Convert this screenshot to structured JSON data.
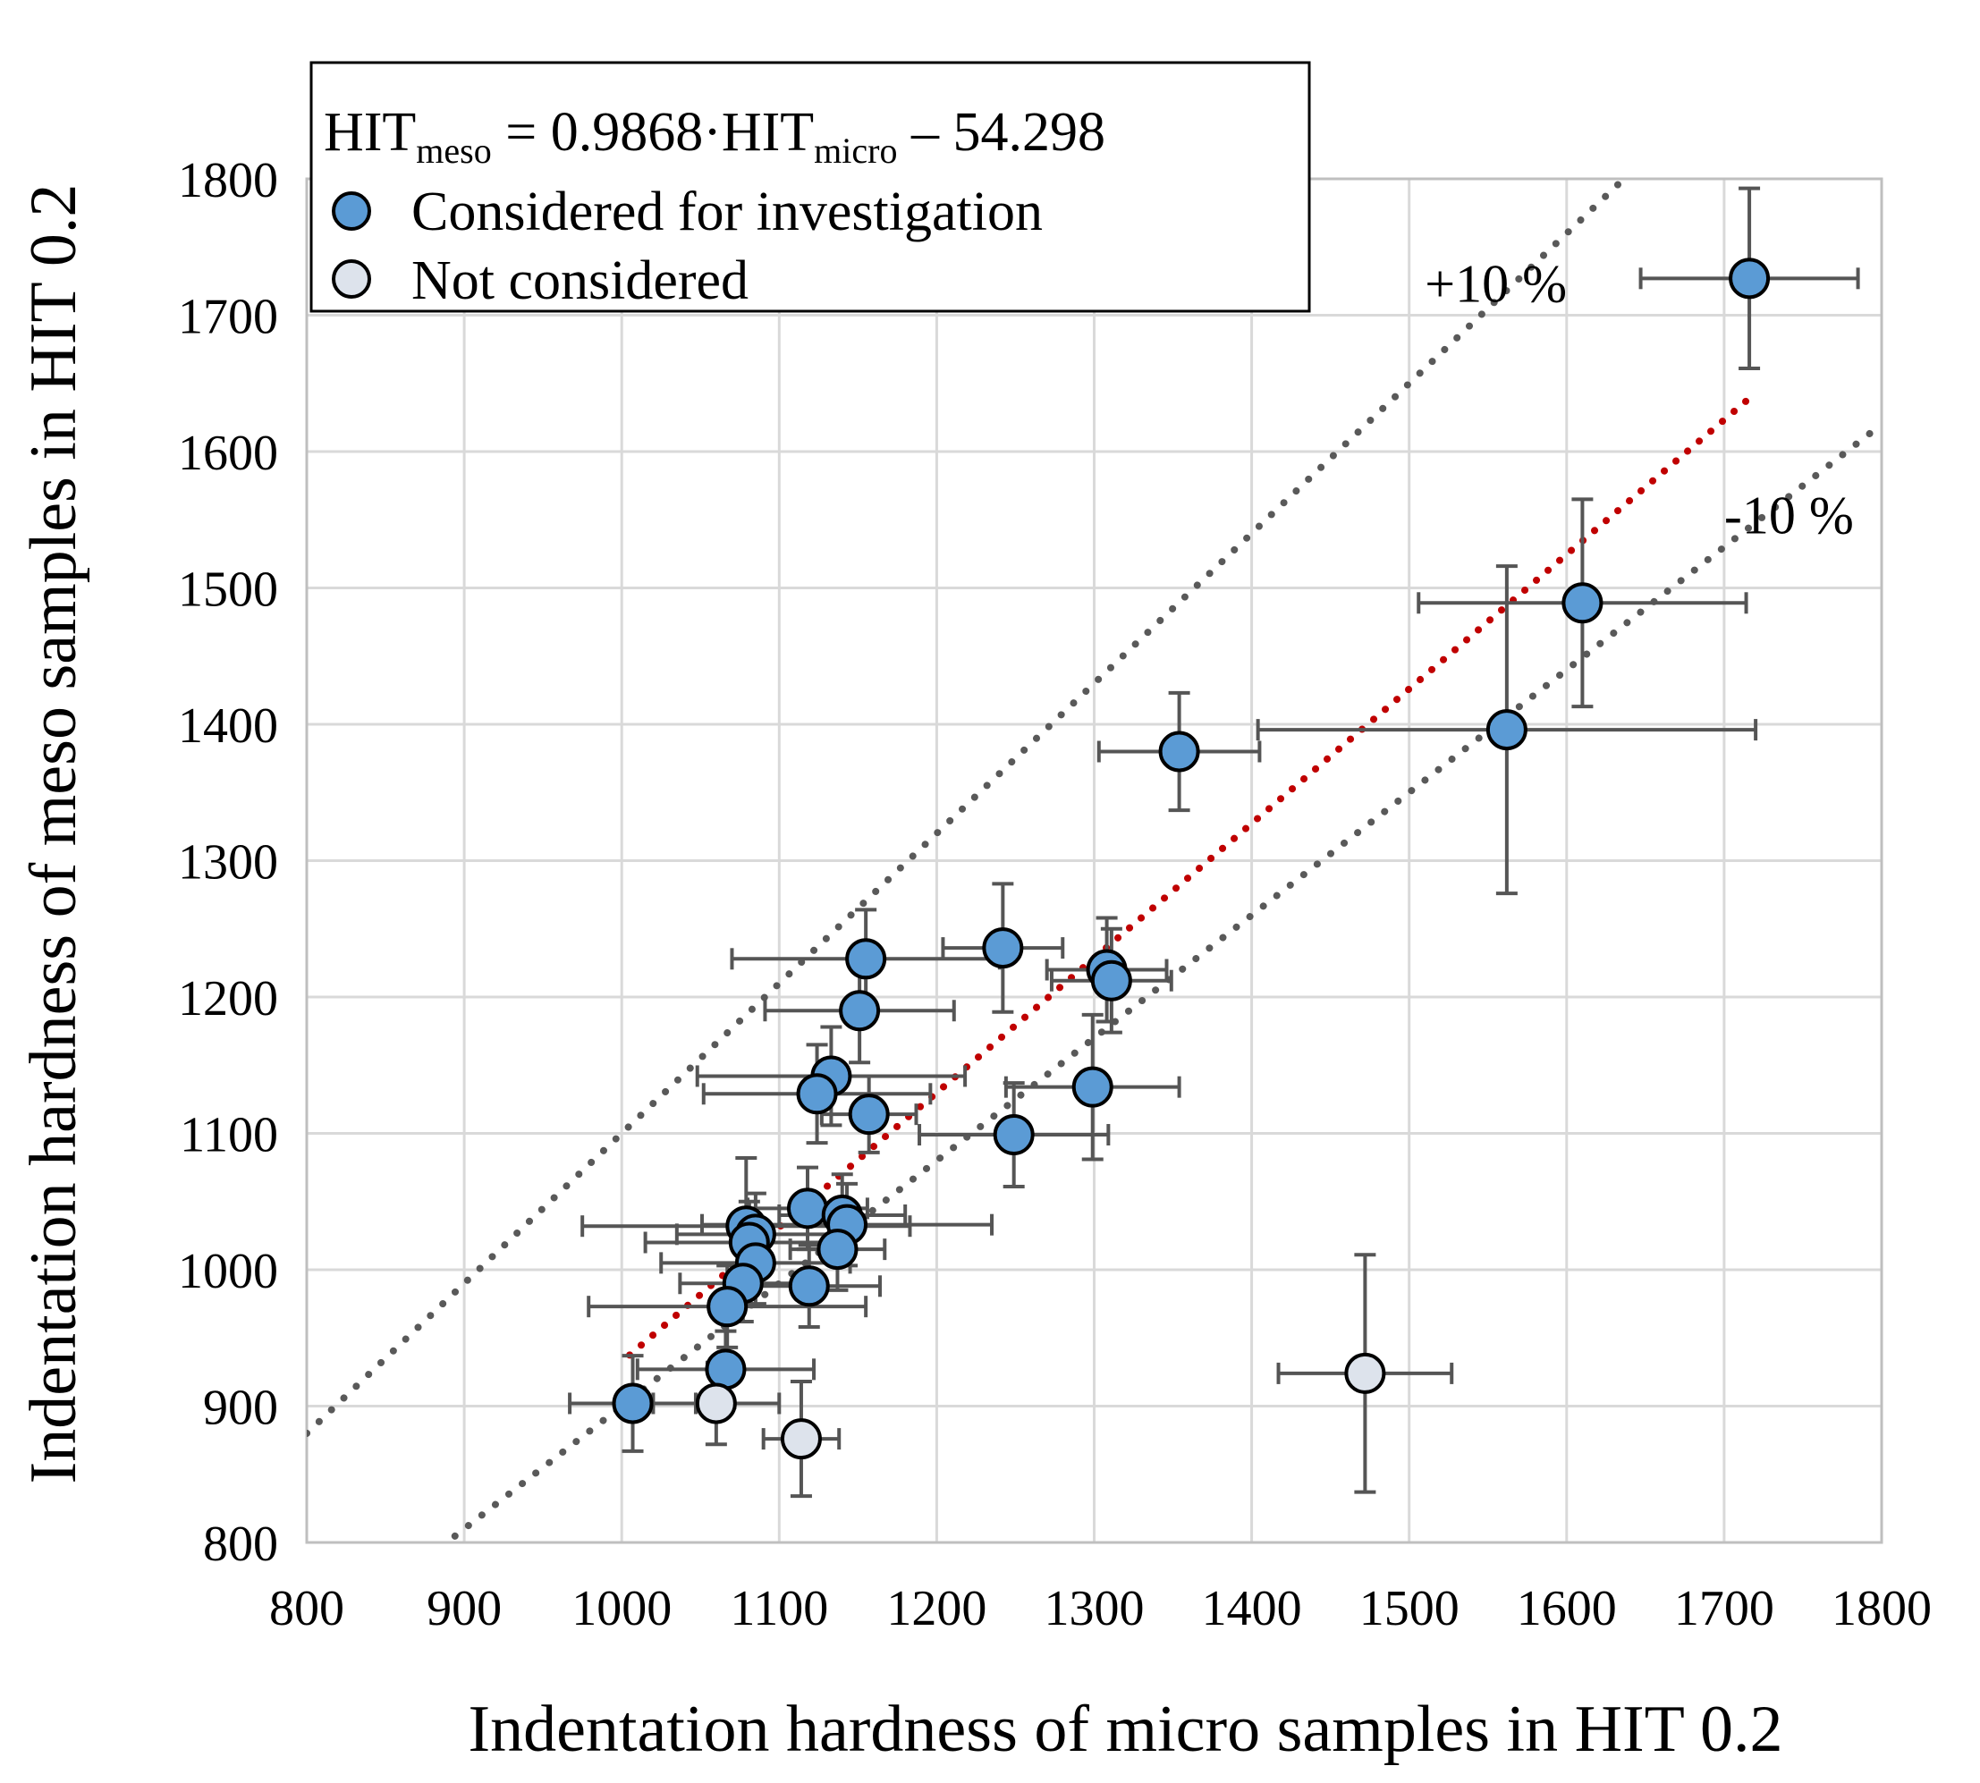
{
  "chart_data": {
    "type": "scatter",
    "title": "",
    "xlabel": "Indentation hardness of micro samples in HIT 0.2",
    "ylabel": "Indentation hardness of meso samples in HIT 0.2",
    "xlim": [
      800,
      1800
    ],
    "ylim": [
      800,
      1800
    ],
    "xticks": [
      "800",
      "900",
      "1000",
      "1100",
      "1200",
      "1300",
      "1400",
      "1500",
      "1600",
      "1700",
      "1800"
    ],
    "yticks": [
      "800",
      "900",
      "1000",
      "1100",
      "1200",
      "1300",
      "1400",
      "1500",
      "1600",
      "1700",
      "1800"
    ],
    "grid": true,
    "legend": {
      "placement": "top-left",
      "equation": {
        "lhs": "HIT",
        "lhs_sub": "meso",
        "mid": " = 0.9868·HIT",
        "mid_sub": "micro",
        "rhs": " – 54.298"
      },
      "entries": [
        "Considered for investigation",
        "Not considered"
      ]
    },
    "colors": {
      "considered": "#5b9bd5",
      "not_considered": "#dde3ec",
      "errorbar": "#555555",
      "fit_line": "#c00000",
      "band_line": "#595959",
      "grid": "#d9d9d9"
    },
    "fit": {
      "slope": 0.9868,
      "intercept": -54.298,
      "x_range": [
        1005,
        1715
      ]
    },
    "bands": [
      {
        "label": "+10 %",
        "factor": 1.1,
        "label_x": 1510,
        "label_y": 1710
      },
      {
        "label": "-10 %",
        "factor": 0.9,
        "label_x": 1700,
        "label_y": 1540
      }
    ],
    "series": [
      {
        "name": "Considered for investigation",
        "points": [
          {
            "x": 1716,
            "y": 1727,
            "xerr": 69,
            "yerr": 66
          },
          {
            "x": 1610,
            "y": 1489,
            "xerr": 104,
            "yerr": 76
          },
          {
            "x": 1562,
            "y": 1396,
            "xerr": 158,
            "yerr": 120
          },
          {
            "x": 1354,
            "y": 1380,
            "xerr": 51,
            "yerr": 43
          },
          {
            "x": 1242,
            "y": 1236,
            "xerr": 38,
            "yerr": 47
          },
          {
            "x": 1155,
            "y": 1228,
            "xerr": 85,
            "yerr": 36
          },
          {
            "x": 1308,
            "y": 1220,
            "xerr": 38,
            "yerr": 38
          },
          {
            "x": 1311,
            "y": 1212,
            "xerr": 38,
            "yerr": 38
          },
          {
            "x": 1151,
            "y": 1190,
            "xerr": 60,
            "yerr": 38
          },
          {
            "x": 1133,
            "y": 1142,
            "xerr": 85,
            "yerr": 36
          },
          {
            "x": 1124,
            "y": 1129,
            "xerr": 72,
            "yerr": 36
          },
          {
            "x": 1299,
            "y": 1134,
            "xerr": 55,
            "yerr": 53
          },
          {
            "x": 1157,
            "y": 1114,
            "xerr": 30,
            "yerr": 28
          },
          {
            "x": 1249,
            "y": 1099,
            "xerr": 60,
            "yerr": 38
          },
          {
            "x": 1118,
            "y": 1045,
            "xerr": 38,
            "yerr": 30
          },
          {
            "x": 1140,
            "y": 1040,
            "xerr": 40,
            "yerr": 30
          },
          {
            "x": 1143,
            "y": 1033,
            "xerr": 92,
            "yerr": 30
          },
          {
            "x": 1079,
            "y": 1032,
            "xerr": 104,
            "yerr": 50
          },
          {
            "x": 1085,
            "y": 1026,
            "xerr": 50,
            "yerr": 30
          },
          {
            "x": 1081,
            "y": 1020,
            "xerr": 66,
            "yerr": 30
          },
          {
            "x": 1137,
            "y": 1015,
            "xerr": 30,
            "yerr": 30
          },
          {
            "x": 1085,
            "y": 1005,
            "xerr": 60,
            "yerr": 30
          },
          {
            "x": 1077,
            "y": 990,
            "xerr": 40,
            "yerr": 28
          },
          {
            "x": 1119,
            "y": 988,
            "xerr": 45,
            "yerr": 30
          },
          {
            "x": 1067,
            "y": 973,
            "xerr": 88,
            "yerr": 30
          },
          {
            "x": 1066,
            "y": 927,
            "xerr": 56,
            "yerr": 28
          },
          {
            "x": 1007,
            "y": 902,
            "xerr": 40,
            "yerr": 35
          }
        ]
      },
      {
        "name": "Not considered",
        "points": [
          {
            "x": 1472,
            "y": 924,
            "xerr": 55,
            "yerr": 87
          },
          {
            "x": 1060,
            "y": 902,
            "xerr": 40,
            "yerr": 30
          },
          {
            "x": 1114,
            "y": 876,
            "xerr": 24,
            "yerr": 42
          }
        ]
      }
    ]
  }
}
